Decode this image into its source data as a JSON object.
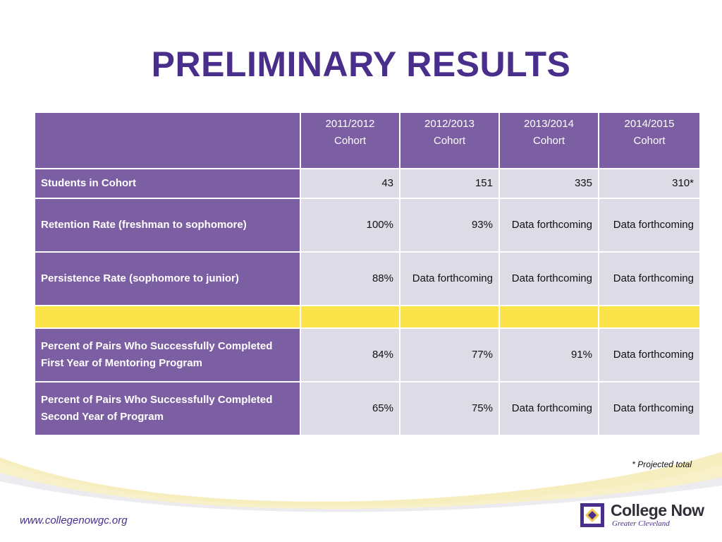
{
  "title": "PRELIMINARY RESULTS",
  "table": {
    "headers": [
      {
        "line1": "2011/2012",
        "line2": "Cohort"
      },
      {
        "line1": "2012/2013",
        "line2": "Cohort"
      },
      {
        "line1": "2013/2014",
        "line2": "Cohort"
      },
      {
        "line1": "2014/2015",
        "line2": "Cohort"
      }
    ],
    "rows": [
      {
        "label": "Students in Cohort",
        "values": [
          "43",
          "151",
          "335",
          "310*"
        ]
      },
      {
        "label": "Retention Rate (freshman to sophomore)",
        "values": [
          "100%",
          "93%",
          "Data forthcoming",
          "Data forthcoming"
        ]
      },
      {
        "label": "Persistence Rate (sophomore to junior)",
        "values": [
          "88%",
          "Data forthcoming",
          "Data forthcoming",
          "Data forthcoming"
        ]
      },
      {
        "label": "Percent of Pairs Who Successfully Completed First Year of Mentoring Program",
        "values": [
          "84%",
          "77%",
          "91%",
          "Data forthcoming"
        ]
      },
      {
        "label": "Percent of Pairs Who Successfully Completed Second Year of Program",
        "values": [
          "65%",
          "75%",
          "Data forthcoming",
          "Data forthcoming"
        ]
      }
    ]
  },
  "footnote": "* Projected total",
  "footer": {
    "url": "www.collegenowgc.org",
    "logo_name": "College Now",
    "logo_sub": "Greater Cleveland"
  },
  "colors": {
    "title": "#4a2e8c",
    "header_bg": "#7c5fa2",
    "cell_bg": "#dcdbe6",
    "highlight_row": "#fbe34a",
    "swoosh_gold": "#f1e08a"
  }
}
